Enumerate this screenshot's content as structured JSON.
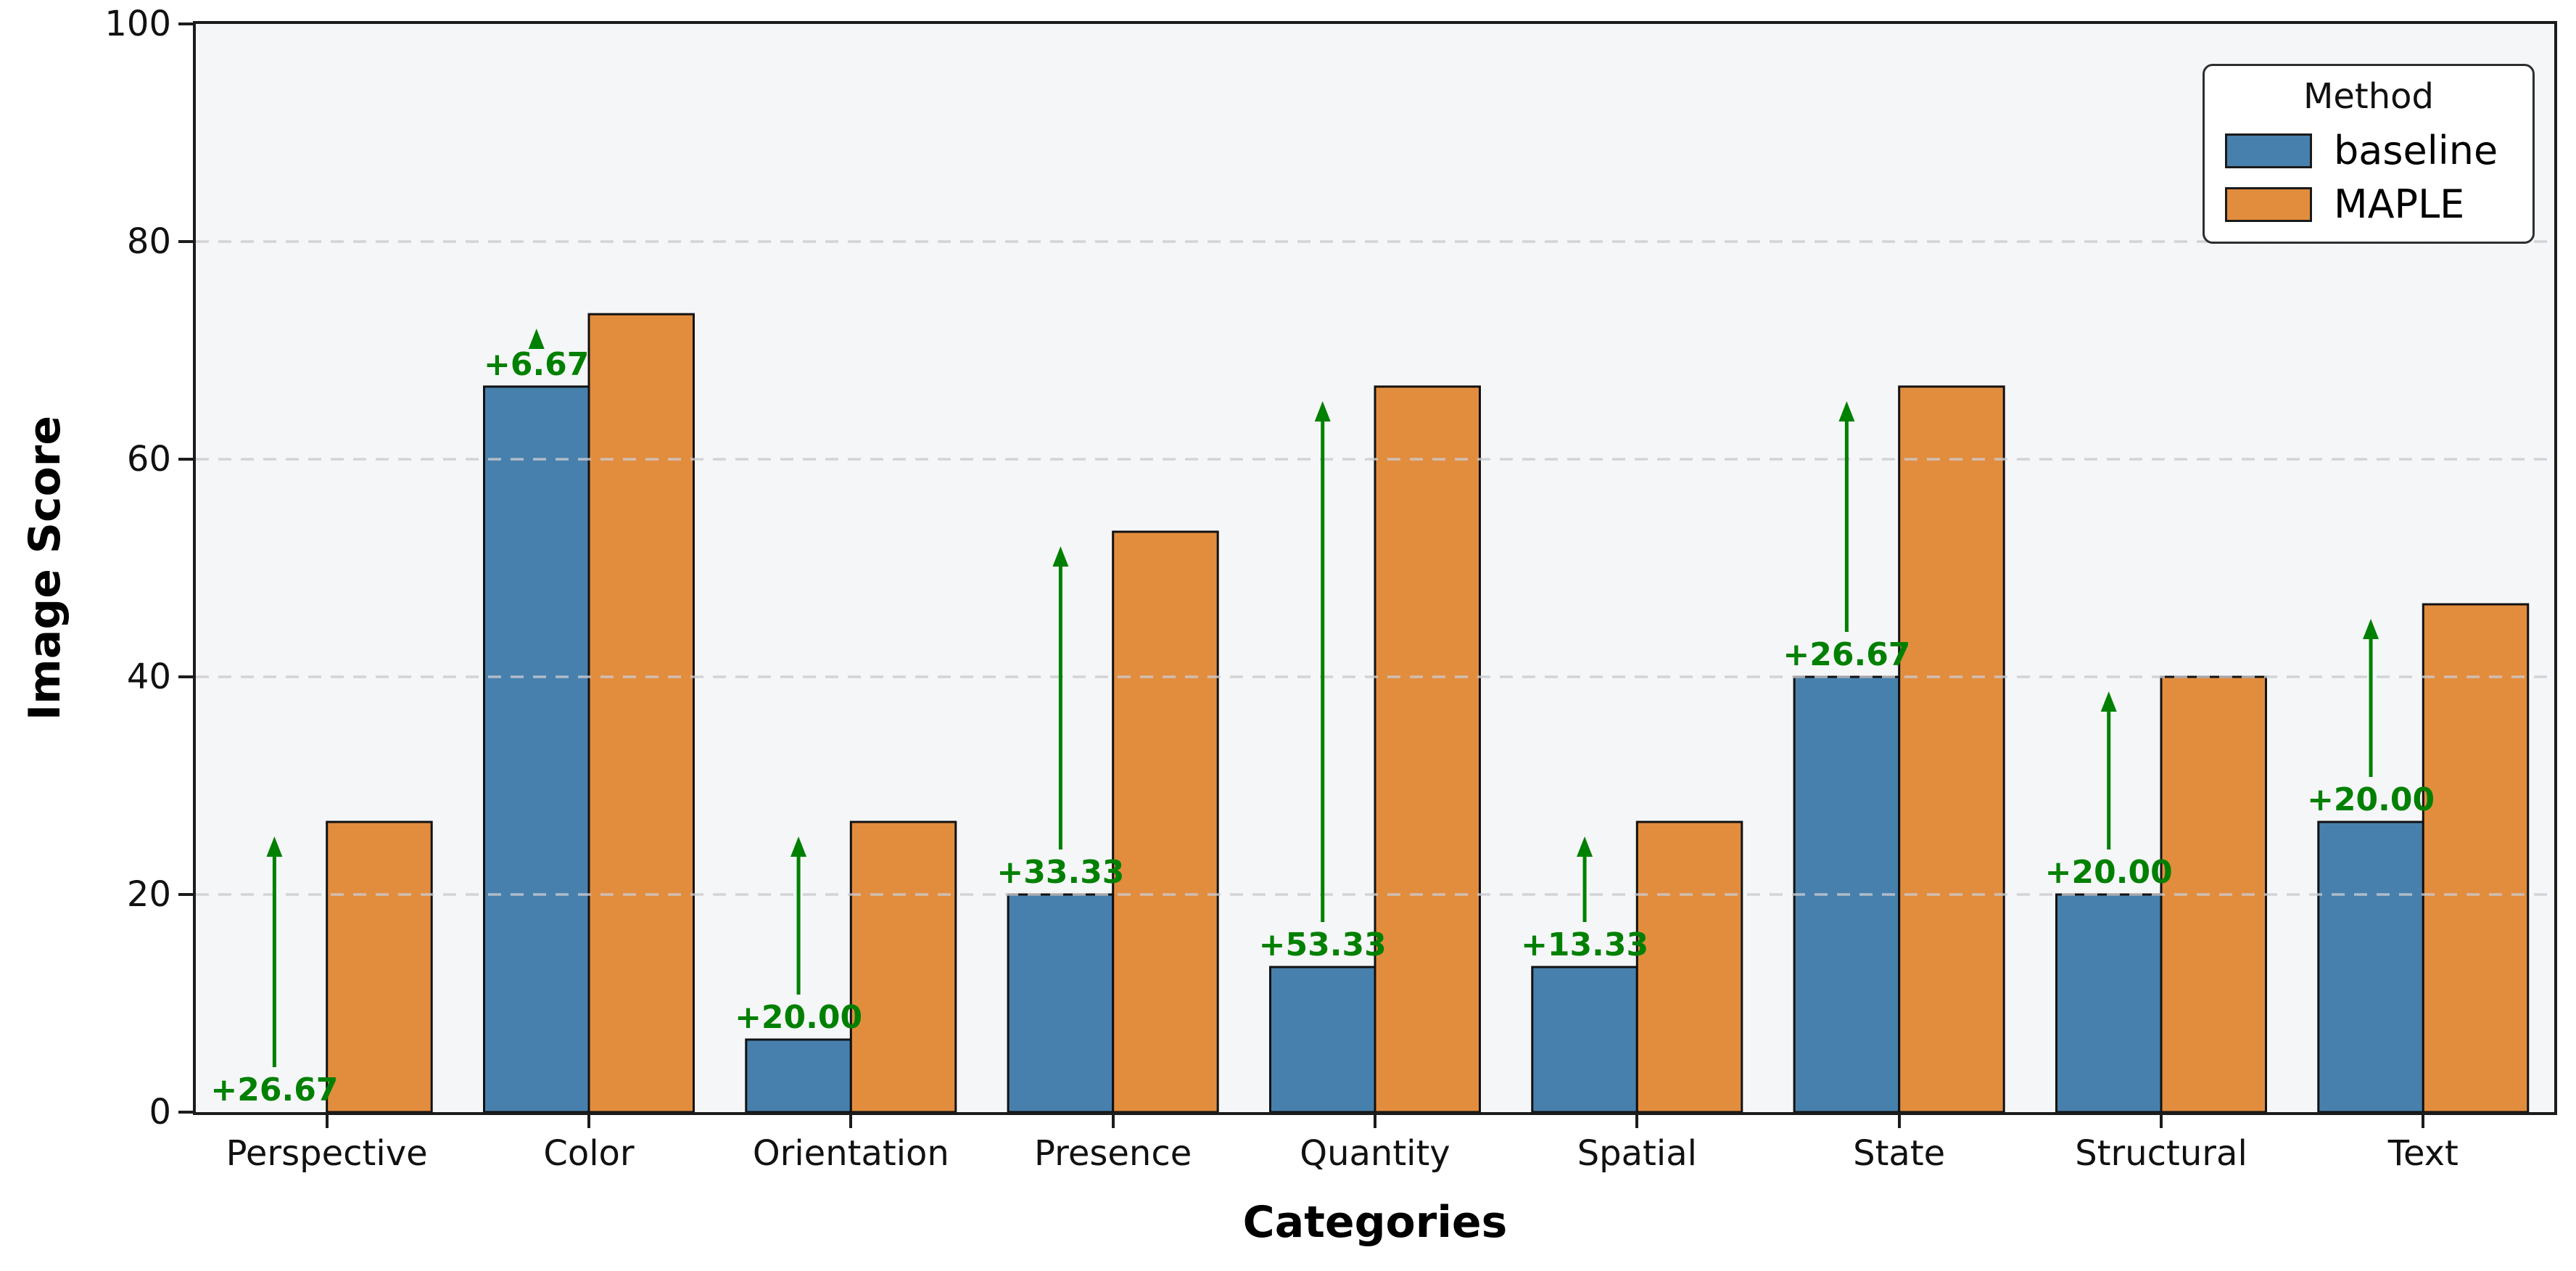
{
  "chart_data": {
    "type": "bar",
    "title": "",
    "xlabel": "Categories",
    "ylabel": "Image Score",
    "categories": [
      "Perspective",
      "Color",
      "Orientation",
      "Presence",
      "Quantity",
      "Spatial",
      "State",
      "Structural",
      "Text"
    ],
    "series": [
      {
        "name": "baseline",
        "color": "#4780ad",
        "values": [
          0,
          66.67,
          6.67,
          20,
          13.33,
          13.33,
          40,
          20,
          26.67
        ]
      },
      {
        "name": "MAPLE",
        "color": "#e28d3e",
        "values": [
          26.67,
          73.33,
          26.67,
          53.33,
          66.67,
          26.67,
          66.67,
          40,
          46.67
        ]
      }
    ],
    "improvement_labels": [
      "+26.67",
      "+6.67",
      "+20.00",
      "+33.33",
      "+53.33",
      "+13.33",
      "+26.67",
      "+20.00",
      "+20.00"
    ],
    "improvement_color": "#008000",
    "bar_edge_color": "#111111",
    "ylim": [
      0,
      100
    ],
    "yticks": [
      0,
      20,
      40,
      60,
      80,
      100
    ],
    "grid": {
      "axis": "y",
      "style": "dashed",
      "above_bars": true
    },
    "legend": {
      "title": "Method",
      "position": "upper right"
    }
  }
}
